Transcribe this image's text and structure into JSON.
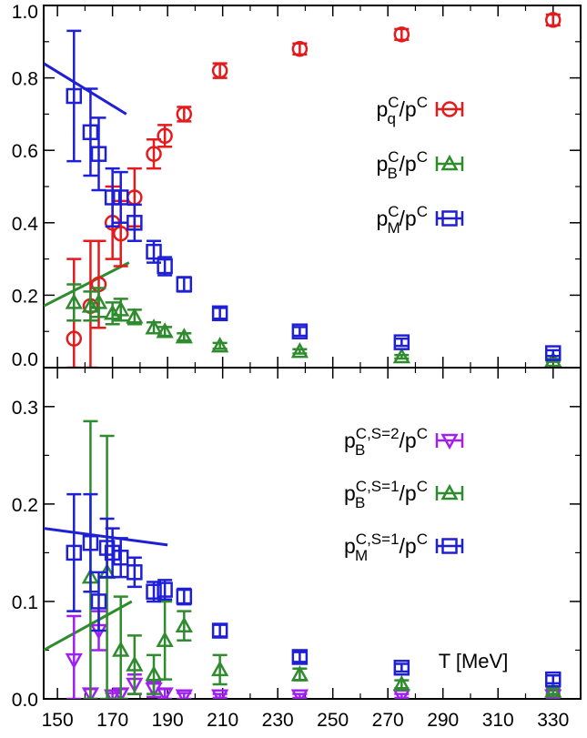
{
  "chart_data": [
    {
      "type": "scatter",
      "panel": "top",
      "xlim": [
        145,
        340
      ],
      "ylim": [
        0,
        1.0
      ],
      "yticks": [
        0.0,
        0.2,
        0.4,
        0.6,
        0.8,
        1.0
      ],
      "ytick_labels": [
        "0.0",
        "0.2",
        "0.4",
        "0.6",
        "0.8",
        "1.0"
      ],
      "legend_placement": "right",
      "series": [
        {
          "name_main": "p",
          "name_sub": "q",
          "name_sup": "C",
          "name_tail": "/p",
          "name_tail_sup": "C",
          "marker": "circle",
          "color": "#e41a1c",
          "points": [
            {
              "x": 156,
              "y": 0.08,
              "err": 0.22
            },
            {
              "x": 162,
              "y": 0.17,
              "err": 0.18
            },
            {
              "x": 165,
              "y": 0.23,
              "err": 0.12
            },
            {
              "x": 170,
              "y": 0.4,
              "err": 0.1
            },
            {
              "x": 173,
              "y": 0.37,
              "err": 0.09
            },
            {
              "x": 178,
              "y": 0.47,
              "err": 0.08
            },
            {
              "x": 185,
              "y": 0.59,
              "err": 0.04
            },
            {
              "x": 189,
              "y": 0.64,
              "err": 0.03
            },
            {
              "x": 196,
              "y": 0.7,
              "err": 0.02
            },
            {
              "x": 209,
              "y": 0.82,
              "err": 0.02
            },
            {
              "x": 238,
              "y": 0.88,
              "err": 0.015
            },
            {
              "x": 275,
              "y": 0.92,
              "err": 0.015
            },
            {
              "x": 330,
              "y": 0.96,
              "err": 0.015
            }
          ]
        },
        {
          "name_main": "p",
          "name_sub": "B",
          "name_sup": "C",
          "name_tail": "/p",
          "name_tail_sup": "C",
          "marker": "triangle-up",
          "color": "#2e8b2e",
          "points": [
            {
              "x": 156,
              "y": 0.18,
              "err": 0.05
            },
            {
              "x": 162,
              "y": 0.17,
              "err": 0.04
            },
            {
              "x": 165,
              "y": 0.18,
              "err": 0.04
            },
            {
              "x": 170,
              "y": 0.15,
              "err": 0.03
            },
            {
              "x": 173,
              "y": 0.16,
              "err": 0.03
            },
            {
              "x": 178,
              "y": 0.14,
              "err": 0.02
            },
            {
              "x": 185,
              "y": 0.11,
              "err": 0.015
            },
            {
              "x": 189,
              "y": 0.1,
              "err": 0.012
            },
            {
              "x": 196,
              "y": 0.085,
              "err": 0.01
            },
            {
              "x": 209,
              "y": 0.06,
              "err": 0.008
            },
            {
              "x": 238,
              "y": 0.045,
              "err": 0.006
            },
            {
              "x": 275,
              "y": 0.03,
              "err": 0.005
            },
            {
              "x": 330,
              "y": 0.02,
              "err": 0.004
            }
          ]
        },
        {
          "name_main": "p",
          "name_sub": "M",
          "name_sup": "C",
          "name_tail": "/p",
          "name_tail_sup": "C",
          "marker": "square",
          "color": "#1f1fd6",
          "points": [
            {
              "x": 156,
              "y": 0.75,
              "err": 0.18
            },
            {
              "x": 162,
              "y": 0.65,
              "err": 0.12
            },
            {
              "x": 165,
              "y": 0.59,
              "err": 0.1
            },
            {
              "x": 170,
              "y": 0.47,
              "err": 0.08
            },
            {
              "x": 173,
              "y": 0.47,
              "err": 0.07
            },
            {
              "x": 178,
              "y": 0.4,
              "err": 0.05
            },
            {
              "x": 185,
              "y": 0.32,
              "err": 0.03
            },
            {
              "x": 189,
              "y": 0.28,
              "err": 0.025
            },
            {
              "x": 196,
              "y": 0.23,
              "err": 0.02
            },
            {
              "x": 209,
              "y": 0.15,
              "err": 0.015
            },
            {
              "x": 238,
              "y": 0.1,
              "err": 0.012
            },
            {
              "x": 275,
              "y": 0.07,
              "err": 0.01
            },
            {
              "x": 330,
              "y": 0.04,
              "err": 0.008
            }
          ]
        }
      ],
      "lines": [
        {
          "color": "#1f1fd6",
          "x": [
            145,
            175
          ],
          "y": [
            0.84,
            0.7
          ]
        },
        {
          "color": "#2e8b2e",
          "x": [
            145,
            176
          ],
          "y": [
            0.17,
            0.29
          ]
        }
      ]
    },
    {
      "type": "scatter",
      "panel": "bottom",
      "xlim": [
        145,
        340
      ],
      "ylim": [
        0,
        0.34
      ],
      "xlabel": "T [MeV]",
      "xticks": [
        150,
        170,
        190,
        210,
        230,
        250,
        270,
        290,
        310,
        330
      ],
      "xtick_labels": [
        "150",
        "170",
        "190",
        "210",
        "230",
        "250",
        "270",
        "290",
        "310",
        "330"
      ],
      "yticks": [
        0.0,
        0.1,
        0.2,
        0.3
      ],
      "ytick_labels": [
        "0.0",
        "0.1",
        "0.2",
        "0.3"
      ],
      "legend_placement": "right",
      "series": [
        {
          "name_main": "p",
          "name_sub": "B",
          "name_sup": "C,S=2",
          "name_tail": "/p",
          "name_tail_sup": "C",
          "marker": "triangle-down",
          "color": "#a020f0",
          "points": [
            {
              "x": 156,
              "y": 0.04,
              "err": 0.045
            },
            {
              "x": 162,
              "y": 0.005,
              "err": 0.005
            },
            {
              "x": 165,
              "y": 0.07,
              "err": 0.02
            },
            {
              "x": 170,
              "y": 0.003,
              "err": 0.003
            },
            {
              "x": 173,
              "y": 0.005,
              "err": 0.005
            },
            {
              "x": 178,
              "y": 0.015,
              "err": 0.01
            },
            {
              "x": 185,
              "y": 0.01,
              "err": 0.008
            },
            {
              "x": 189,
              "y": 0.005,
              "err": 0.005
            },
            {
              "x": 196,
              "y": 0.003,
              "err": 0.003
            },
            {
              "x": 209,
              "y": 0.003,
              "err": 0.002
            },
            {
              "x": 238,
              "y": 0.003,
              "err": 0.002
            },
            {
              "x": 275,
              "y": 0.003,
              "err": 0.002
            },
            {
              "x": 330,
              "y": 0.003,
              "err": 0.002
            }
          ]
        },
        {
          "name_main": "p",
          "name_sub": "B",
          "name_sup": "C,S=1",
          "name_tail": "/p",
          "name_tail_sup": "C",
          "marker": "triangle-up",
          "color": "#2e8b2e",
          "points": [
            {
              "x": 162,
              "y": 0.125,
              "err": 0.16
            },
            {
              "x": 168,
              "y": 0.13,
              "err": 0.14
            },
            {
              "x": 173,
              "y": 0.05,
              "err": 0.055
            },
            {
              "x": 178,
              "y": 0.035,
              "err": 0.03
            },
            {
              "x": 185,
              "y": 0.025,
              "err": 0.02
            },
            {
              "x": 189,
              "y": 0.06,
              "err": 0.04
            },
            {
              "x": 196,
              "y": 0.075,
              "err": 0.015
            },
            {
              "x": 209,
              "y": 0.03,
              "err": 0.015
            },
            {
              "x": 238,
              "y": 0.025,
              "err": 0.006
            },
            {
              "x": 275,
              "y": 0.015,
              "err": 0.004
            },
            {
              "x": 330,
              "y": 0.008,
              "err": 0.003
            }
          ]
        },
        {
          "name_main": "p",
          "name_sub": "M",
          "name_sup": "C,S=1",
          "name_tail": "/p",
          "name_tail_sup": "C",
          "marker": "square",
          "color": "#1f1fd6",
          "points": [
            {
              "x": 156,
              "y": 0.15,
              "err": 0.06
            },
            {
              "x": 162,
              "y": 0.16,
              "err": 0.05
            },
            {
              "x": 165,
              "y": 0.1,
              "err": 0.03
            },
            {
              "x": 168,
              "y": 0.155,
              "err": 0.03
            },
            {
              "x": 170,
              "y": 0.15,
              "err": 0.025
            },
            {
              "x": 173,
              "y": 0.145,
              "err": 0.02
            },
            {
              "x": 178,
              "y": 0.13,
              "err": 0.015
            },
            {
              "x": 185,
              "y": 0.11,
              "err": 0.01
            },
            {
              "x": 189,
              "y": 0.112,
              "err": 0.01
            },
            {
              "x": 196,
              "y": 0.105,
              "err": 0.008
            },
            {
              "x": 209,
              "y": 0.07,
              "err": 0.006
            },
            {
              "x": 238,
              "y": 0.043,
              "err": 0.005
            },
            {
              "x": 275,
              "y": 0.032,
              "err": 0.004
            },
            {
              "x": 330,
              "y": 0.02,
              "err": 0.004
            }
          ]
        }
      ],
      "lines": [
        {
          "color": "#1f1fd6",
          "x": [
            145,
            190
          ],
          "y": [
            0.175,
            0.158
          ]
        },
        {
          "color": "#2e8b2e",
          "x": [
            145,
            177
          ],
          "y": [
            0.05,
            0.1
          ]
        }
      ]
    }
  ]
}
